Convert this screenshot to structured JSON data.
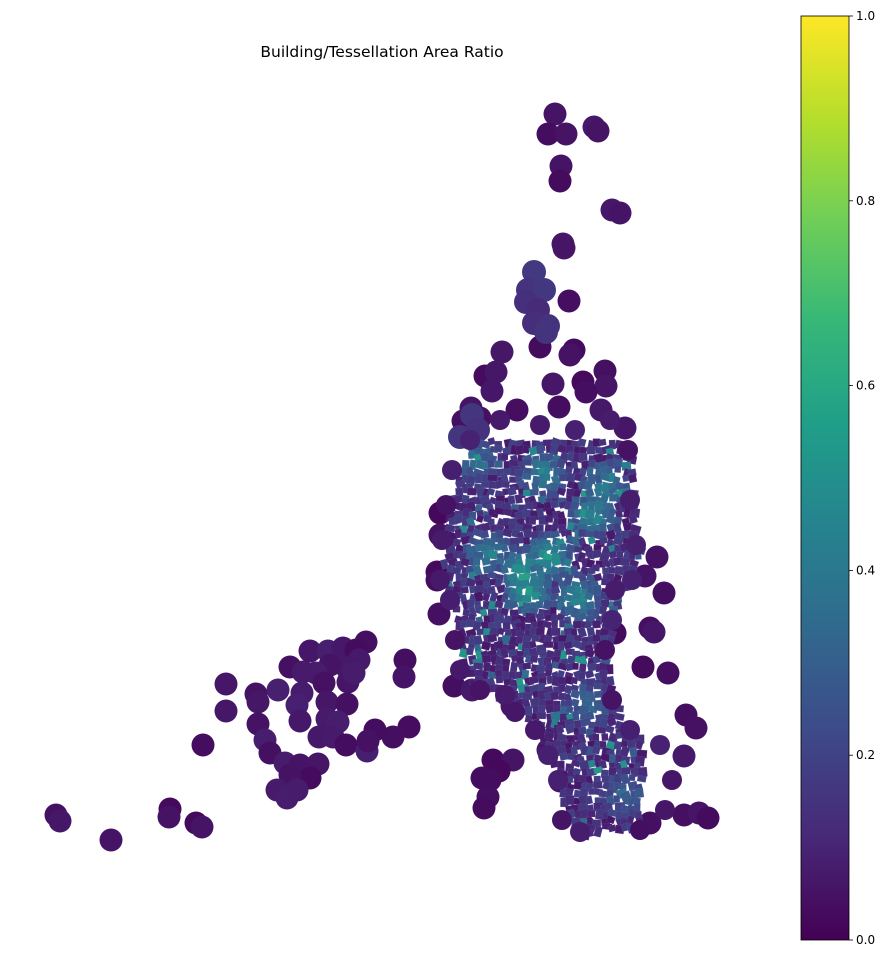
{
  "figure": {
    "title": "Building/Tessellation Area Ratio"
  },
  "colorbar": {
    "label": "",
    "min": 0.0,
    "max": 1.0,
    "colormap": "viridis",
    "ticks": [
      "0.0",
      "0.2",
      "0.4",
      "0.6",
      "0.8",
      "1.0"
    ],
    "tick_values": [
      0.0,
      0.2,
      0.4,
      0.6,
      0.8,
      1.0
    ],
    "stops": [
      "#440154",
      "#482878",
      "#3e4989",
      "#31688e",
      "#26828e",
      "#1f9e89",
      "#35b779",
      "#6ece58",
      "#b5de2b",
      "#fde725"
    ]
  },
  "chart_data": {
    "type": "choropleth",
    "title": "Building/Tessellation Area Ratio",
    "variable": "Building/Tessellation Area Ratio",
    "value_range": [
      0.0,
      1.0
    ],
    "colormap": "viridis",
    "summary": {
      "dominant_value_range": [
        0.0,
        0.2
      ],
      "dense_core_value_range": [
        0.1,
        0.6
      ],
      "max_observed_approx": 0.65
    }
  }
}
